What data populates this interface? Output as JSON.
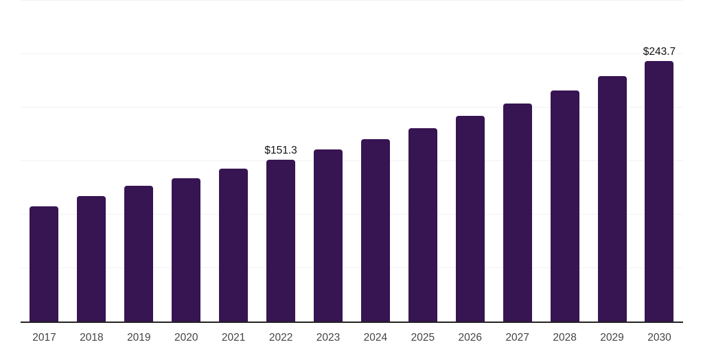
{
  "chart": {
    "background_color": "#ffffff",
    "bar_color": "#371452",
    "grid_color": "#f2f2f2",
    "axis_color": "#222222",
    "tick_label_color": "#444444",
    "data_label_color": "#111111"
  },
  "chart_data": {
    "type": "bar",
    "title": "",
    "xlabel": "",
    "ylabel": "",
    "categories": [
      "2017",
      "2018",
      "2019",
      "2020",
      "2021",
      "2022",
      "2023",
      "2024",
      "2025",
      "2026",
      "2027",
      "2028",
      "2029",
      "2030"
    ],
    "values": [
      107.4,
      117.5,
      126.7,
      134.1,
      143.1,
      151.3,
      160.6,
      170.4,
      180.9,
      192.0,
      203.8,
      216.3,
      229.6,
      243.7
    ],
    "data_labels": [
      "",
      "",
      "",
      "",
      "",
      "$151.3",
      "",
      "",
      "",
      "",
      "",
      "",
      "",
      "$243.7"
    ],
    "ylim": [
      0,
      300
    ],
    "gridline_values": [
      50,
      100,
      150,
      200,
      250,
      300
    ],
    "grid": true,
    "legend_position": "none",
    "y_tick_labels_visible": false
  }
}
